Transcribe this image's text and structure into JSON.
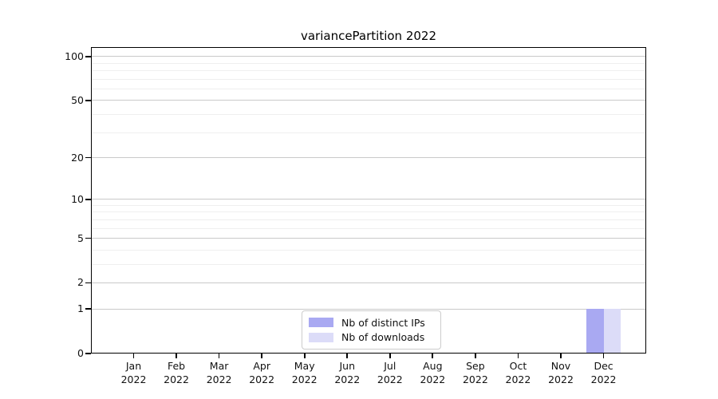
{
  "chart_data": {
    "type": "bar",
    "title": "variancePartition 2022",
    "xlabel": "",
    "ylabel": "",
    "year": "2022",
    "categories": [
      "Jan",
      "Feb",
      "Mar",
      "Apr",
      "May",
      "Jun",
      "Jul",
      "Aug",
      "Sep",
      "Oct",
      "Nov",
      "Dec"
    ],
    "series": [
      {
        "key": "distinct-ips",
        "name": "Nb of distinct IPs",
        "color": "#a9a9f2",
        "values": [
          0,
          0,
          0,
          0,
          0,
          0,
          0,
          0,
          0,
          0,
          0,
          1
        ]
      },
      {
        "key": "downloads",
        "name": "Nb of downloads",
        "color": "#dcdcf8",
        "values": [
          0,
          0,
          0,
          0,
          0,
          0,
          0,
          0,
          0,
          0,
          0,
          1
        ]
      }
    ],
    "yscale": "log1p",
    "ylim": [
      0,
      116
    ],
    "yticks": [
      0,
      1,
      2,
      5,
      10,
      20,
      50,
      100
    ],
    "minor_gridlines": [
      3,
      4,
      6,
      7,
      8,
      9,
      30,
      40,
      60,
      70,
      80,
      90
    ],
    "grid": "on",
    "legend_position": "lower center"
  }
}
